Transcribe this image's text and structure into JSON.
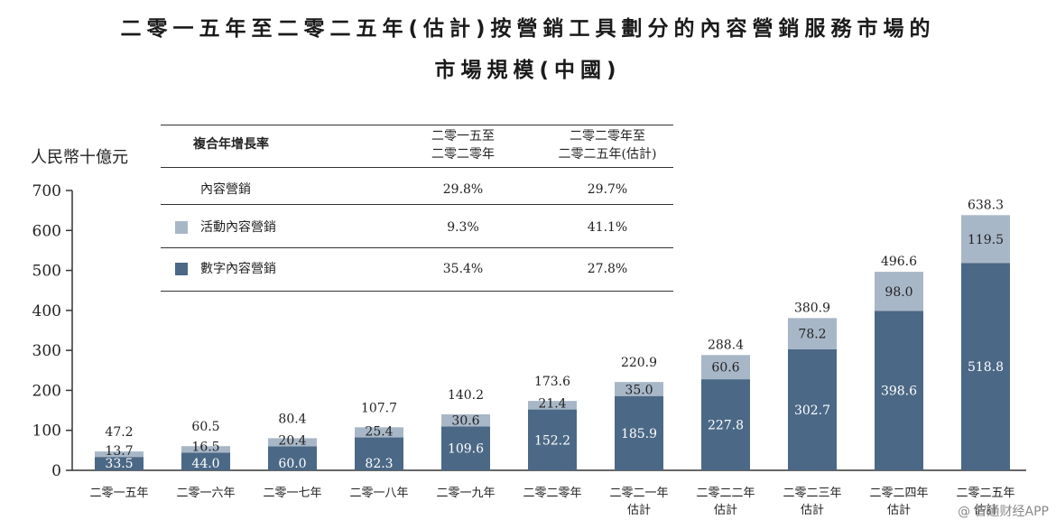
{
  "title_line1": "二零一五年至二零二五年(估計)按營銷工具劃分的內容營銷服務市場的",
  "title_line2": "市場規模(中國)",
  "unit_label": "人民幣十億元",
  "legend": {
    "header": "複合年增長率",
    "col1_header_line1": "二零一五至",
    "col1_header_line2": "二零二零年",
    "col2_header_line1": "二零二零年至",
    "col2_header_line2": "二零二五年(估計)",
    "rows": [
      {
        "label": "內容營銷",
        "cagr1": "29.8%",
        "cagr2": "29.7%"
      },
      {
        "label": "活動內容營銷",
        "cagr1": "9.3%",
        "cagr2": "41.1%"
      },
      {
        "label": "數字內容營銷",
        "cagr1": "35.4%",
        "cagr2": "27.8%"
      }
    ]
  },
  "colors": {
    "event": "#a8b7c7",
    "digital": "#4b6886",
    "axis": "#333333"
  },
  "watermark": "@ 智通财经APP",
  "chart_data": {
    "type": "bar",
    "stacked": true,
    "title": "二零一五年至二零二五年(估計)按營銷工具劃分的內容營銷服務市場的市場規模(中國)",
    "ylabel": "人民幣十億元",
    "ylim": [
      0,
      700
    ],
    "yticks": [
      0,
      100,
      200,
      300,
      400,
      500,
      600,
      700
    ],
    "categories": [
      {
        "line1": "二零一五年",
        "line2": ""
      },
      {
        "line1": "二零一六年",
        "line2": ""
      },
      {
        "line1": "二零一七年",
        "line2": ""
      },
      {
        "line1": "二零一八年",
        "line2": ""
      },
      {
        "line1": "二零一九年",
        "line2": ""
      },
      {
        "line1": "二零二零年",
        "line2": ""
      },
      {
        "line1": "二零二一年",
        "line2": "估計"
      },
      {
        "line1": "二零二二年",
        "line2": "估計"
      },
      {
        "line1": "二零二三年",
        "line2": "估計"
      },
      {
        "line1": "二零二四年",
        "line2": "估計"
      },
      {
        "line1": "二零二五年",
        "line2": "估計"
      }
    ],
    "series": [
      {
        "name": "數字內容營銷",
        "values": [
          33.5,
          44.0,
          60.0,
          82.3,
          109.6,
          152.2,
          185.9,
          227.8,
          302.7,
          398.6,
          518.8
        ]
      },
      {
        "name": "活動內容營銷",
        "values": [
          13.7,
          16.5,
          20.4,
          25.4,
          30.6,
          21.4,
          35.0,
          60.6,
          78.2,
          98.0,
          119.5
        ]
      }
    ],
    "totals": [
      47.2,
      60.5,
      80.4,
      107.7,
      140.2,
      173.6,
      220.9,
      288.4,
      380.9,
      496.6,
      638.3
    ],
    "labels": {
      "digital": [
        "33.5",
        "44.0",
        "60.0",
        "82.3",
        "109.6",
        "152.2",
        "185.9",
        "227.8",
        "302.7",
        "398.6",
        "518.8"
      ],
      "event": [
        "13.7",
        "16.5",
        "20.4",
        "25.4",
        "30.6",
        "21.4",
        "35.0",
        "60.6",
        "78.2",
        "98.0",
        "119.5"
      ],
      "totals": [
        "47.2",
        "60.5",
        "80.4",
        "107.7",
        "140.2",
        "173.6",
        "220.9",
        "288.4",
        "380.9",
        "496.6",
        "638.3"
      ]
    }
  }
}
